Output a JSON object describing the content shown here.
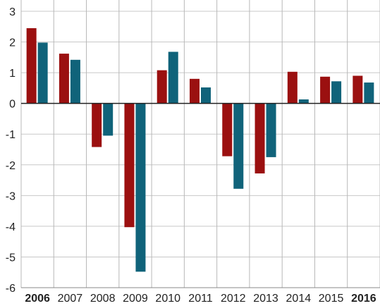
{
  "chart_data": {
    "type": "bar",
    "categories": [
      "2006",
      "2007",
      "2008",
      "2009",
      "2010",
      "2011",
      "2012",
      "2013",
      "2014",
      "2015",
      "2016"
    ],
    "bold_categories": [
      "2006",
      "2016"
    ],
    "series": [
      {
        "values": [
          2.45,
          1.62,
          -1.42,
          -4.03,
          1.08,
          0.8,
          -1.72,
          -2.28,
          1.03,
          0.87,
          0.9
        ],
        "color": "#9b1010"
      },
      {
        "values": [
          1.98,
          1.42,
          -1.05,
          -5.48,
          1.68,
          0.52,
          -2.78,
          -1.75,
          0.13,
          0.72,
          0.68
        ],
        "color": "#10637a"
      }
    ],
    "ylim": [
      -6,
      3
    ],
    "yticks": [
      "3",
      "2",
      "1",
      "0",
      "-1",
      "-2",
      "-3",
      "-4",
      "-5",
      "-6"
    ],
    "grid": true,
    "zero_line": true
  }
}
